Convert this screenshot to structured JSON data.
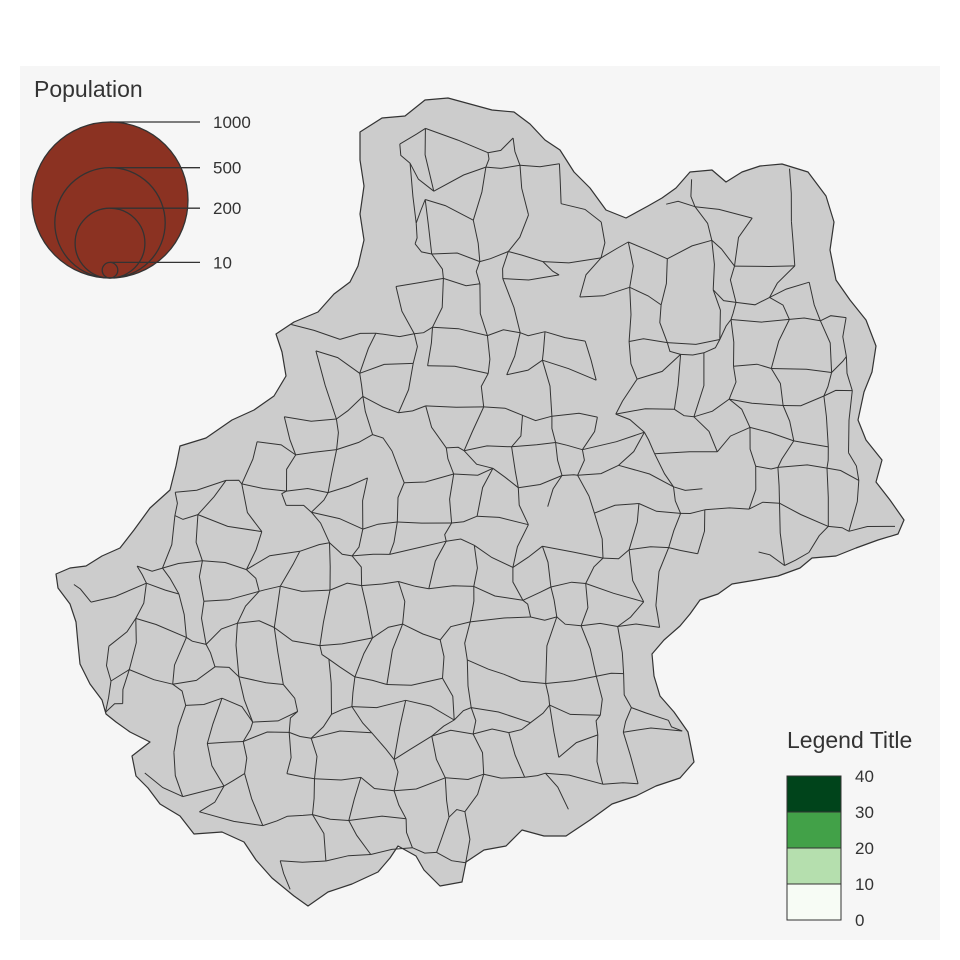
{
  "map": {
    "background": "#f6f6f6",
    "region_fill": "#cccccc",
    "border_color": "#333333"
  },
  "population_legend": {
    "title": "Population",
    "symbol_fill": "#8b3222",
    "values": [
      1000,
      500,
      200,
      10
    ],
    "labels": [
      "1000",
      "500",
      "200",
      "10"
    ]
  },
  "choropleth_legend": {
    "title": "Legend Title",
    "breaks": [
      "0",
      "10",
      "20",
      "30",
      "40"
    ],
    "colors": [
      "#f7fcf5",
      "#b5dfae",
      "#42a148",
      "#00441b"
    ]
  }
}
